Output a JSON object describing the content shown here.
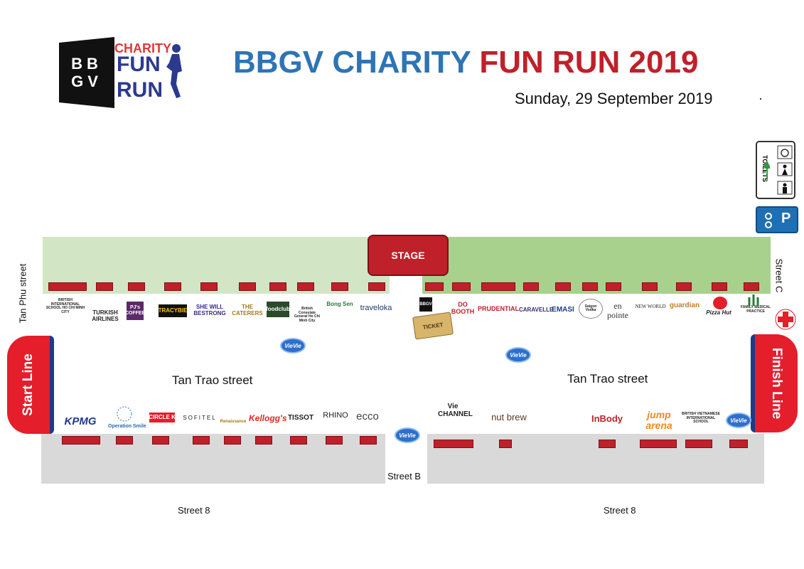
{
  "logo": {
    "bb": "BB",
    "gv": "GV",
    "charity": "CHARITY",
    "fun": "FUN",
    "run": "RUN"
  },
  "title": {
    "part1": "BBGV CHARITY ",
    "part2": "FUN RUN 2019"
  },
  "date": "Sunday, 29 September 2019",
  "stage": "STAGE",
  "streets": {
    "tan_phu": "Tan Phu street",
    "street_c": "Street C",
    "tan_trao": "Tan Trao street",
    "street_b": "Street B",
    "street_8": "Street 8"
  },
  "start_line": "Start Line",
  "finish_line": "Finish Line",
  "toilets": "TOILETS",
  "parking": "P",
  "ticket": "TICKET",
  "vie_label": "VieVie",
  "sponsors_top_left": [
    "BRITISH INTERNATIONAL SCHOOL HO CHI MINH CITY",
    "TURKISH AIRLINES",
    "PJ's COFFEE",
    "TRACYBIE",
    "SHE WILL BESTRONG",
    "THE CATERERS",
    "foodclub",
    "British Consulate General Ho Chi Minh City",
    "Bong Sen",
    "traveloka"
  ],
  "sponsors_top_right": [
    "BBGV",
    "DO BOOTH",
    "PRUDENTIAL",
    "CARAVELLE",
    "EMASI",
    "Saigon Vodka",
    "en pointe",
    "NEW WORLD",
    "guardian",
    "Pizza Hut",
    "FAMILY MEDICAL PRACTICE"
  ],
  "sponsors_bottom_left": [
    "KPMG",
    "Operation Smile",
    "CIRCLE K",
    "SOFITEL",
    "Renaissance",
    "Kellogg's",
    "TISSOT",
    "RHINO",
    "ecco"
  ],
  "sponsors_bottom_right": [
    "Vie CHANNEL",
    "nut brew",
    "InBody",
    "jump arena",
    "BRITISH VIETNAMESE INTERNATIONAL SCHOOL"
  ],
  "colors": {
    "title_blue": "#2e74b5",
    "title_red": "#c0202a",
    "booth_red": "#c0202a",
    "green_light": "#d2e6c6",
    "green_dark": "#a9d18e",
    "grey": "#d9d9d9",
    "line_red": "#e41e2b"
  }
}
